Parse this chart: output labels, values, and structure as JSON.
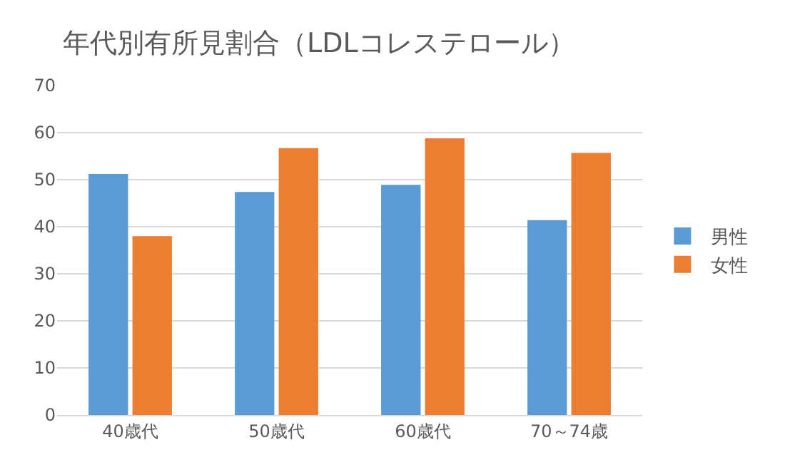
{
  "chart_data": {
    "type": "bar",
    "title": "年代別有所見割合（LDLコレステロール）",
    "categories": [
      "40歳代",
      "50歳代",
      "60歳代",
      "70～74歳"
    ],
    "series": [
      {
        "name": "男性",
        "color": "#5b9bd5",
        "values": [
          51.2,
          47.4,
          48.9,
          41.4
        ]
      },
      {
        "name": "女性",
        "color": "#ed7d31",
        "values": [
          38.0,
          56.7,
          58.8,
          55.7
        ]
      }
    ],
    "ylim": [
      0,
      70
    ],
    "yticks": [
      0,
      10,
      20,
      30,
      40,
      50,
      60,
      70
    ],
    "grid": "y",
    "legend": "right"
  }
}
